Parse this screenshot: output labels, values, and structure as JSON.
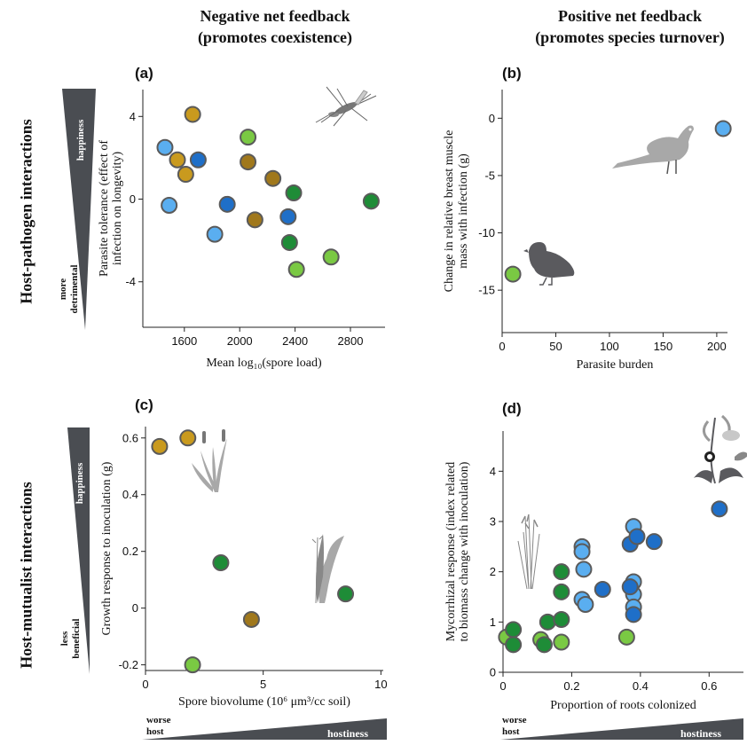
{
  "headers": {
    "col1": "Negative net feedback",
    "col1_sub": "(promotes coexistence)",
    "col2": "Positive net feedback",
    "col2_sub": "(promotes species turnover)",
    "row1": "Host-pathogen interactions",
    "row2": "Host-mutualist interactions"
  },
  "wedges": {
    "top_happiness": "happiness",
    "top_low_line1": "more",
    "top_low_line2": "detrimental",
    "bottom_happiness": "happiness",
    "bottom_low_line1": "less",
    "bottom_low_line2": "beneficial",
    "host_low_line1": "worse",
    "host_low_line2": "host",
    "hostiness": "hostiness",
    "host_low_line1_d": "worse",
    "host_low_line2_d": "host",
    "hostiness_d": "hostiness"
  },
  "colors": {
    "olive": "#C99A1E",
    "brown": "#A0781C",
    "light_blue": "#5AAEF0",
    "blue": "#1F6FC8",
    "light_green": "#7AC943",
    "green": "#1E8C37",
    "marker_edge": "#5a5a5a",
    "silhouette": "#a0a0a0",
    "bird_dark": "#5a5a5e",
    "wedge": "#4a4d52"
  },
  "chart_data": [
    {
      "id": "a",
      "panel_label": "(a)",
      "type": "scatter",
      "xlabel": "Mean log₁₀(spore load)",
      "ylabel_line1": "Parasite tolerance (effect of",
      "ylabel_line2": "infection on longevity)",
      "xlim": [
        1300,
        3050
      ],
      "ylim": [
        -6.2,
        5.3
      ],
      "xticks": [
        1600,
        2000,
        2400,
        2800
      ],
      "xtick_labels": [
        "1600",
        "2000",
        "2400",
        "2800"
      ],
      "yticks": [
        -4,
        0,
        4
      ],
      "ytick_labels": [
        "-4",
        "0",
        "4"
      ],
      "points": [
        {
          "x": 1460,
          "y": 2.5,
          "c": "light_blue"
        },
        {
          "x": 1490,
          "y": -0.3,
          "c": "light_blue"
        },
        {
          "x": 1550,
          "y": 1.9,
          "c": "olive"
        },
        {
          "x": 1610,
          "y": 1.2,
          "c": "olive"
        },
        {
          "x": 1660,
          "y": 4.1,
          "c": "olive"
        },
        {
          "x": 1700,
          "y": 1.9,
          "c": "blue"
        },
        {
          "x": 1820,
          "y": -1.7,
          "c": "light_blue"
        },
        {
          "x": 1910,
          "y": -0.25,
          "c": "blue"
        },
        {
          "x": 2060,
          "y": 3.0,
          "c": "light_green"
        },
        {
          "x": 2060,
          "y": 1.8,
          "c": "brown"
        },
        {
          "x": 2110,
          "y": -1.0,
          "c": "brown"
        },
        {
          "x": 2240,
          "y": 1.0,
          "c": "brown"
        },
        {
          "x": 2350,
          "y": -0.85,
          "c": "blue"
        },
        {
          "x": 2360,
          "y": -2.1,
          "c": "green"
        },
        {
          "x": 2390,
          "y": 0.3,
          "c": "green"
        },
        {
          "x": 2410,
          "y": -3.4,
          "c": "light_green"
        },
        {
          "x": 2660,
          "y": -2.8,
          "c": "light_green"
        },
        {
          "x": 2950,
          "y": -0.1,
          "c": "green"
        }
      ]
    },
    {
      "id": "b",
      "panel_label": "(b)",
      "type": "scatter",
      "xlabel": "Parasite burden",
      "ylabel_line1": "Change in relative breast muscle",
      "ylabel_line2": "mass with infection (g)",
      "xlim": [
        0,
        210
      ],
      "ylim": [
        -18.7,
        2.5
      ],
      "xticks": [
        0,
        50,
        100,
        150,
        200
      ],
      "xtick_labels": [
        "0",
        "50",
        "100",
        "150",
        "200"
      ],
      "yticks": [
        -15,
        -10,
        -5,
        0
      ],
      "ytick_labels": [
        "-15",
        "-10",
        "-5",
        "0"
      ],
      "points": [
        {
          "x": 10,
          "y": -13.6,
          "c": "light_green"
        },
        {
          "x": 206,
          "y": -0.9,
          "c": "light_blue"
        }
      ]
    },
    {
      "id": "c",
      "panel_label": "(c)",
      "type": "scatter",
      "xlabel": "Spore biovolume (10⁶ μm³/cc soil)",
      "ylabel_line1": "Growth response to inoculation (g)",
      "ylabel_line2": "",
      "xlim": [
        0,
        10.1
      ],
      "ylim": [
        -0.22,
        0.64
      ],
      "xticks": [
        0,
        5,
        10
      ],
      "xtick_labels": [
        "0",
        "5",
        "10"
      ],
      "yticks": [
        -0.2,
        0,
        0.2,
        0.4,
        0.6
      ],
      "ytick_labels": [
        "-0.2",
        "0",
        "0.2",
        "0.4",
        "0.6"
      ],
      "points": [
        {
          "x": 0.6,
          "y": 0.57,
          "c": "olive"
        },
        {
          "x": 1.8,
          "y": 0.6,
          "c": "olive"
        },
        {
          "x": 2.0,
          "y": -0.2,
          "c": "light_green"
        },
        {
          "x": 3.2,
          "y": 0.16,
          "c": "green"
        },
        {
          "x": 4.5,
          "y": -0.04,
          "c": "brown"
        },
        {
          "x": 8.5,
          "y": 0.05,
          "c": "green"
        }
      ]
    },
    {
      "id": "d",
      "panel_label": "(d)",
      "type": "scatter",
      "xlabel": "Proportion of roots colonized",
      "ylabel_line1": "Mycorrhizal response (index related",
      "ylabel_line2": "to biomass change with inoculation)",
      "xlim": [
        0,
        0.7
      ],
      "ylim": [
        0,
        4.8
      ],
      "xticks": [
        0,
        0.2,
        0.4,
        0.6
      ],
      "xtick_labels": [
        "0",
        "0.2",
        "0.4",
        "0.6"
      ],
      "yticks": [
        0,
        1,
        2,
        3,
        4
      ],
      "ytick_labels": [
        "0",
        "1",
        "2",
        "3",
        "4"
      ],
      "points": [
        {
          "x": 0.01,
          "y": 0.7,
          "c": "light_green"
        },
        {
          "x": 0.03,
          "y": 0.55,
          "c": "green"
        },
        {
          "x": 0.03,
          "y": 0.85,
          "c": "green"
        },
        {
          "x": 0.11,
          "y": 0.65,
          "c": "light_green"
        },
        {
          "x": 0.12,
          "y": 0.55,
          "c": "green"
        },
        {
          "x": 0.13,
          "y": 1.0,
          "c": "green"
        },
        {
          "x": 0.17,
          "y": 2.0,
          "c": "green"
        },
        {
          "x": 0.17,
          "y": 1.6,
          "c": "green"
        },
        {
          "x": 0.17,
          "y": 1.05,
          "c": "green"
        },
        {
          "x": 0.17,
          "y": 0.6,
          "c": "light_green"
        },
        {
          "x": 0.23,
          "y": 2.5,
          "c": "light_blue"
        },
        {
          "x": 0.23,
          "y": 2.4,
          "c": "light_blue"
        },
        {
          "x": 0.235,
          "y": 2.05,
          "c": "light_blue"
        },
        {
          "x": 0.23,
          "y": 1.45,
          "c": "light_blue"
        },
        {
          "x": 0.24,
          "y": 1.35,
          "c": "light_blue"
        },
        {
          "x": 0.29,
          "y": 1.65,
          "c": "blue"
        },
        {
          "x": 0.36,
          "y": 0.7,
          "c": "light_green"
        },
        {
          "x": 0.37,
          "y": 2.55,
          "c": "blue"
        },
        {
          "x": 0.38,
          "y": 2.9,
          "c": "light_blue"
        },
        {
          "x": 0.39,
          "y": 2.7,
          "c": "blue"
        },
        {
          "x": 0.38,
          "y": 1.8,
          "c": "light_blue"
        },
        {
          "x": 0.38,
          "y": 1.55,
          "c": "light_blue"
        },
        {
          "x": 0.38,
          "y": 1.3,
          "c": "light_blue"
        },
        {
          "x": 0.38,
          "y": 1.15,
          "c": "blue"
        },
        {
          "x": 0.37,
          "y": 1.7,
          "c": "blue"
        },
        {
          "x": 0.44,
          "y": 2.6,
          "c": "blue"
        },
        {
          "x": 0.63,
          "y": 3.25,
          "c": "blue"
        }
      ]
    }
  ]
}
